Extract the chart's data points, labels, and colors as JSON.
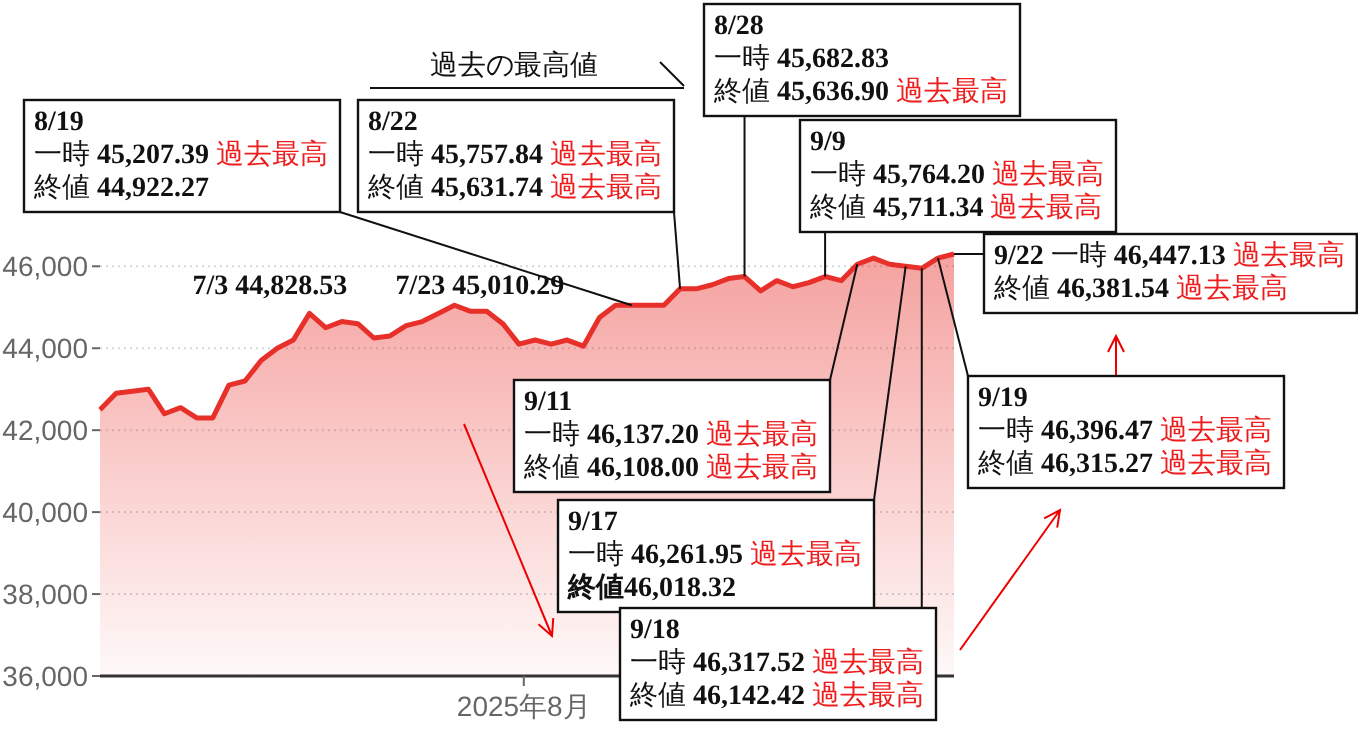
{
  "chart_data": {
    "type": "line",
    "color": "#e8302a",
    "categories": [
      null,
      null,
      null,
      null,
      null,
      null,
      null,
      null,
      null,
      null,
      null,
      null,
      null,
      null,
      null,
      null,
      null,
      null,
      null,
      null,
      null,
      null,
      null,
      null,
      null,
      null,
      null,
      null,
      null,
      null,
      null,
      null,
      null,
      null,
      null,
      null,
      null,
      null,
      null,
      null,
      null,
      null,
      null,
      null,
      null,
      null,
      null,
      null,
      null,
      null,
      null,
      null,
      null,
      null
    ],
    "values": [
      42500,
      42900,
      42950,
      43000,
      42400,
      42550,
      42300,
      42300,
      43100,
      43200,
      43700,
      44000,
      44200,
      44850,
      44500,
      44650,
      44600,
      44250,
      44300,
      44550,
      44650,
      44850,
      45050,
      44900,
      44900,
      44600,
      44100,
      44200,
      44100,
      44200,
      44050,
      44750,
      45050,
      45050,
      45050,
      45050,
      45450,
      45450,
      45550,
      45700,
      45750,
      45400,
      45650,
      45500,
      45600,
      45750,
      45650,
      46050,
      46200,
      46050,
      46000,
      45950,
      46200,
      46300
    ],
    "ylim": [
      36000,
      46300
    ],
    "yticks": [
      {
        "value": 36000,
        "label": "36,000"
      },
      {
        "value": 38000,
        "label": "38,000"
      },
      {
        "value": 40000,
        "label": "40,000"
      },
      {
        "value": 42000,
        "label": "42,000"
      },
      {
        "value": 44000,
        "label": "44,000"
      },
      {
        "value": 46000,
        "label": "46,000"
      }
    ],
    "grid": "y",
    "annotations": [
      "過去の最高値",
      "2025年8月",
      "7/3 44,828.53",
      "7/23 45,010.29",
      "8/19",
      "一時 45,207.39 過去最高",
      "終値 44,922.27",
      "8/22",
      "一時 45,757.84 過去最高",
      "終値 45,631.74 過去最高",
      "8/28",
      "一時 45,682.83",
      "終値 45,636.90 過去最高",
      "9/9",
      "一時 45,764.20 過去最高",
      "終値 45,711.34 過去最高",
      "9/22 一時 46,447.13 過去最高",
      "終値 46,381.54 過去最高",
      "9/11",
      "一時 46,137.20 過去最高",
      "終値 46,108.00 過去最高",
      "9/17",
      "一時 46,261.95 過去最高",
      "終値46,018.32",
      "9/18",
      "一時 46,317.52 過去最高",
      "終値 46,142.42 過去最高",
      "9/19",
      "一時 46,396.47 過去最高",
      "終値 46,315.27 過去最高"
    ]
  }
}
